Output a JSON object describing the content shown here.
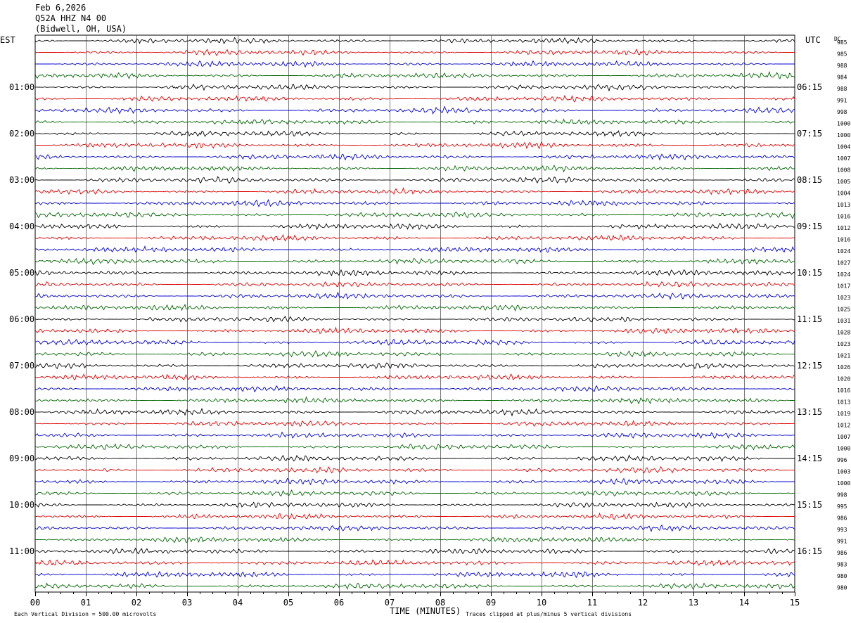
{
  "header": {
    "date": "Feb 6,2026",
    "station": "Q52A HHZ N4 00",
    "location": "(Bidwell, OH, USA)"
  },
  "labels": {
    "left_tz": "EST",
    "right_tz": "UTC",
    "dc_label": "DC",
    "x_axis_title": "TIME (MINUTES)",
    "scale_note": "Each Vertical Division =  500.00 microvolts",
    "clip_note": "Traces clipped at plus/minus 5 vertical divisions"
  },
  "chart_data": {
    "type": "line",
    "x_ticks": [
      "00",
      "01",
      "02",
      "03",
      "04",
      "05",
      "06",
      "07",
      "08",
      "09",
      "10",
      "11",
      "12",
      "13",
      "14",
      "15"
    ],
    "xlim": [
      0,
      15
    ],
    "trace_colors": [
      "#000000",
      "#dd0000",
      "#0000cc",
      "#006600"
    ],
    "left_hour_labels": [
      "01:00",
      "02:00",
      "03:00",
      "04:00",
      "05:00",
      "06:00",
      "07:00",
      "08:00",
      "09:00",
      "10:00",
      "11:00"
    ],
    "right_hour_labels": [
      "06:15",
      "07:15",
      "08:15",
      "09:15",
      "10:15",
      "11:15",
      "12:15",
      "13:15",
      "14:15",
      "15:15",
      "16:15"
    ],
    "dc_offsets": [
      "985",
      "985",
      "988",
      "984",
      "988",
      "991",
      "998",
      "1000",
      "1000",
      "1004",
      "1007",
      "1008",
      "1005",
      "1004",
      "1013",
      "1016",
      "1012",
      "1016",
      "1024",
      "1027",
      "1024",
      "1017",
      "1023",
      "1025",
      "1031",
      "1028",
      "1023",
      "1021",
      "1026",
      "1020",
      "1016",
      "1013",
      "1019",
      "1012",
      "1007",
      "1000",
      "996",
      "1003",
      "1000",
      "998",
      "995",
      "986",
      "993",
      "991",
      "986",
      "983",
      "980",
      "980"
    ],
    "grid": true
  }
}
